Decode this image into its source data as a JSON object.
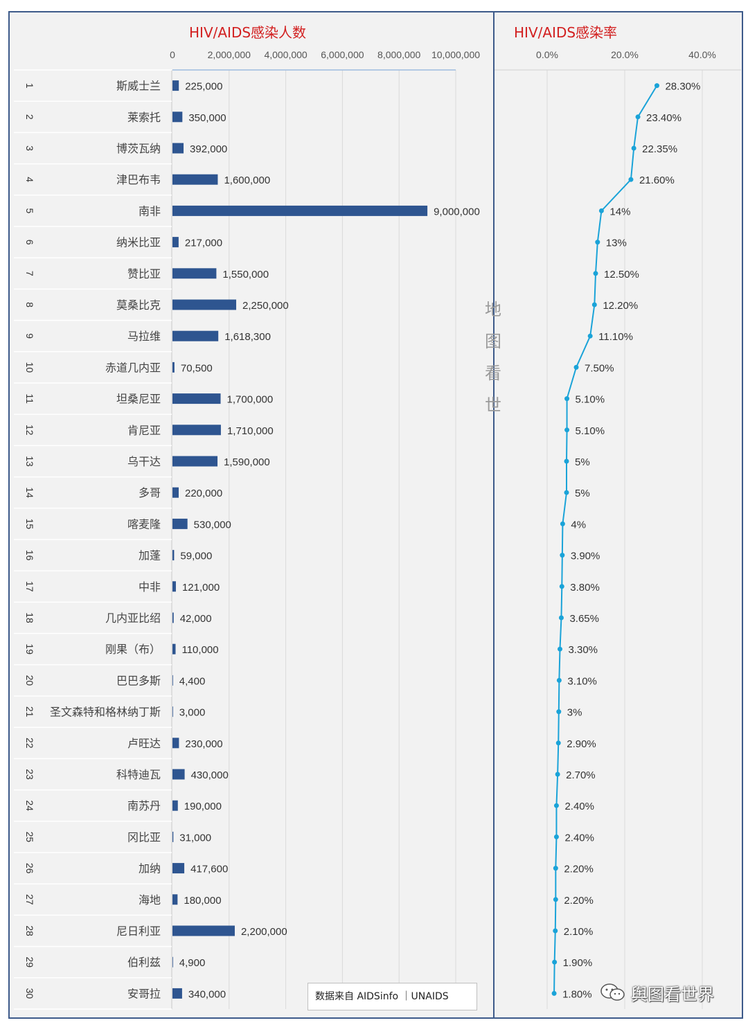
{
  "chart_data": [
    {
      "type": "bar",
      "orientation": "horizontal",
      "title": "HIV/AIDS感染人数",
      "x_ticks": [
        "0",
        "2,000,000",
        "4,000,000",
        "6,000,000",
        "8,000,000",
        "10,000,000"
      ],
      "xlim": [
        0,
        10000000
      ],
      "grid": true,
      "categories": [
        "斯威士兰",
        "莱索托",
        "博茨瓦纳",
        "津巴布韦",
        "南非",
        "纳米比亚",
        "赞比亚",
        "莫桑比克",
        "马拉维",
        "赤道几内亚",
        "坦桑尼亚",
        "肯尼亚",
        "乌干达",
        "多哥",
        "喀麦隆",
        "加蓬",
        "中非",
        "几内亚比绍",
        "刚果（布）",
        "巴巴多斯",
        "圣文森特和格林纳丁斯",
        "卢旺达",
        "科特迪瓦",
        "南苏丹",
        "冈比亚",
        "加纳",
        "海地",
        "尼日利亚",
        "伯利兹",
        "安哥拉"
      ],
      "ranks": [
        "1",
        "2",
        "3",
        "4",
        "5",
        "6",
        "7",
        "8",
        "9",
        "10",
        "11",
        "12",
        "13",
        "14",
        "15",
        "16",
        "17",
        "18",
        "19",
        "20",
        "21",
        "22",
        "23",
        "24",
        "25",
        "26",
        "27",
        "28",
        "29",
        "30"
      ],
      "values": [
        225000,
        350000,
        392000,
        1600000,
        9000000,
        217000,
        1550000,
        2250000,
        1618300,
        70500,
        1700000,
        1710000,
        1590000,
        220000,
        530000,
        59000,
        121000,
        42000,
        110000,
        4400,
        3000,
        230000,
        430000,
        190000,
        31000,
        417600,
        180000,
        2200000,
        4900,
        340000
      ],
      "labels": [
        "225,000",
        "350,000",
        "392,000",
        "1,600,000",
        "9,000,000",
        "217,000",
        "1,550,000",
        "2,250,000",
        "1,618,300",
        "70,500",
        "1,700,000",
        "1,710,000",
        "1,590,000",
        "220,000",
        "530,000",
        "59,000",
        "121,000",
        "42,000",
        "110,000",
        "4,400",
        "3,000",
        "230,000",
        "430,000",
        "190,000",
        "31,000",
        "417,600",
        "180,000",
        "2,200,000",
        "4,900",
        "340,000"
      ],
      "colors": {
        "bar": "#2e5590"
      }
    },
    {
      "type": "line",
      "orientation": "vertical",
      "title": "HIV/AIDS感染率",
      "x_ticks": [
        "0.0%",
        "20.0%",
        "40.0%"
      ],
      "xlim": [
        0,
        40
      ],
      "grid": true,
      "values": [
        28.3,
        23.4,
        22.35,
        21.6,
        14,
        13,
        12.5,
        12.2,
        11.1,
        7.5,
        5.1,
        5.1,
        5,
        5,
        4,
        3.9,
        3.8,
        3.65,
        3.3,
        3.1,
        3,
        2.9,
        2.7,
        2.4,
        2.4,
        2.2,
        2.2,
        2.1,
        1.9,
        1.8
      ],
      "labels": [
        "28.30%",
        "23.40%",
        "22.35%",
        "21.60%",
        "14%",
        "13%",
        "12.50%",
        "12.20%",
        "11.10%",
        "7.50%",
        "5.10%",
        "5.10%",
        "5%",
        "5%",
        "4%",
        "3.90%",
        "3.80%",
        "3.65%",
        "3.30%",
        "3.10%",
        "3%",
        "2.90%",
        "2.70%",
        "2.40%",
        "2.40%",
        "2.20%",
        "2.20%",
        "2.10%",
        "1.90%",
        "1.80%"
      ],
      "colors": {
        "line": "#1aa3d8"
      }
    }
  ],
  "source_note": "数据来自 AIDSinfo ｜UNAIDS",
  "watermark_vertical": "地图看世",
  "watermark_brand": "舆图看世界",
  "colors": {
    "title": "#d21f1f",
    "frame": "#3d5a8a",
    "panel_bg": "#f2f2f2",
    "grid": "#d9d9d9"
  }
}
